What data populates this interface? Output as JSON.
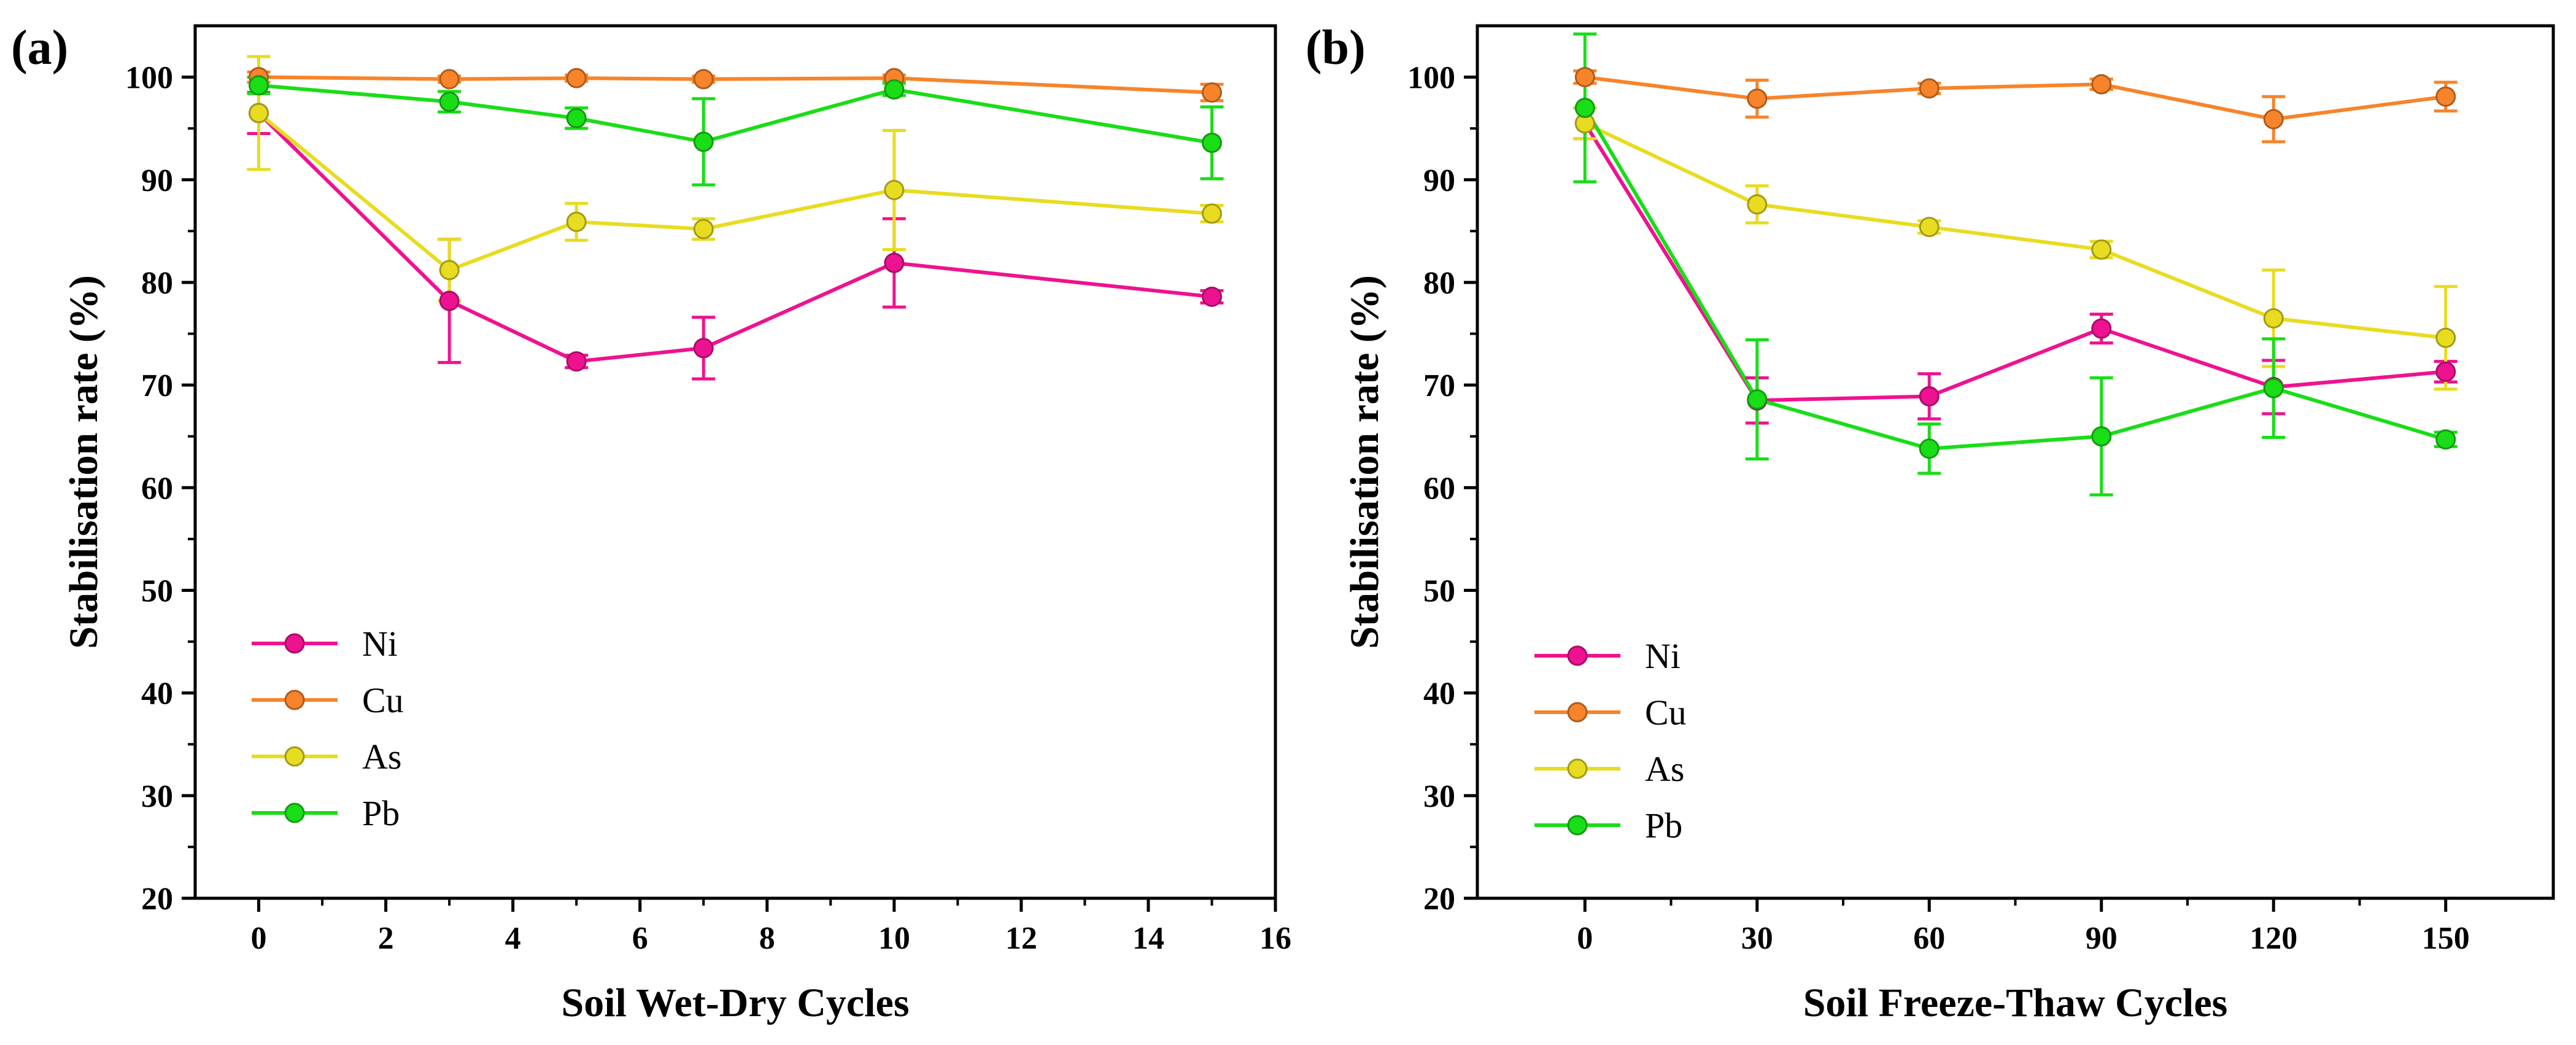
{
  "chart_data": [
    {
      "type": "line",
      "panel_label": "(a)",
      "xlabel": "Soil Wet-Dry Cycles",
      "ylabel": "Stabilisation rate  (%)",
      "xlim": [
        -1,
        16
      ],
      "ylim": [
        20,
        105
      ],
      "xticks": [
        0,
        2,
        4,
        6,
        8,
        10,
        12,
        14,
        16
      ],
      "yticks": [
        20,
        30,
        40,
        50,
        60,
        70,
        80,
        90,
        100
      ],
      "x": [
        0,
        3,
        5,
        7,
        10,
        15
      ],
      "legend_position": "lower-left",
      "series": [
        {
          "name": "Ni",
          "color": "#ee1290",
          "values": [
            96.5,
            78.2,
            72.3,
            73.6,
            81.9,
            78.6
          ],
          "errors": [
            2.0,
            6.0,
            0.6,
            3.0,
            4.3,
            0.6
          ]
        },
        {
          "name": "Cu",
          "color": "#f7842a",
          "values": [
            100.0,
            99.8,
            99.9,
            99.8,
            99.9,
            98.5
          ],
          "errors": [
            0.5,
            0.3,
            0.3,
            0.3,
            0.3,
            0.8
          ]
        },
        {
          "name": "As",
          "color": "#e8dc20",
          "values": [
            96.5,
            81.2,
            85.9,
            85.2,
            89.0,
            86.7
          ],
          "errors": [
            5.5,
            3.0,
            1.8,
            1.0,
            5.8,
            0.8
          ]
        },
        {
          "name": "Pb",
          "color": "#19dd17",
          "values": [
            99.2,
            97.6,
            96.0,
            93.7,
            98.8,
            93.6
          ],
          "errors": [
            0.8,
            1.0,
            1.0,
            4.2,
            0.6,
            3.5
          ]
        }
      ]
    },
    {
      "type": "line",
      "panel_label": "(b)",
      "xlabel": "Soil Freeze-Thaw Cycles",
      "ylabel": "Stabilisation rate  (%)",
      "xlim": [
        -18.75,
        168.75
      ],
      "ylim": [
        20,
        105
      ],
      "xticks": [
        0,
        30,
        60,
        90,
        120,
        150
      ],
      "yticks": [
        20,
        30,
        40,
        50,
        60,
        70,
        80,
        90,
        100
      ],
      "x": [
        0,
        30,
        60,
        90,
        120,
        150
      ],
      "legend_position": "lower-left",
      "series": [
        {
          "name": "Ni",
          "color": "#ee1290",
          "values": [
            95.5,
            68.5,
            68.9,
            75.5,
            69.8,
            71.3
          ],
          "errors": [
            1.5,
            2.2,
            2.2,
            1.4,
            2.6,
            1.0
          ]
        },
        {
          "name": "Cu",
          "color": "#f7842a",
          "values": [
            100.0,
            97.9,
            98.9,
            99.3,
            95.9,
            98.1
          ],
          "errors": [
            0.6,
            1.8,
            0.5,
            0.5,
            2.2,
            1.4
          ]
        },
        {
          "name": "As",
          "color": "#e8dc20",
          "values": [
            95.5,
            87.6,
            85.4,
            83.2,
            76.5,
            74.6
          ],
          "errors": [
            1.5,
            1.8,
            0.6,
            0.8,
            4.7,
            5.0
          ]
        },
        {
          "name": "Pb",
          "color": "#19dd17",
          "values": [
            97.0,
            68.6,
            63.8,
            65.0,
            69.7,
            64.7
          ],
          "errors": [
            7.2,
            5.8,
            2.4,
            5.7,
            4.8,
            0.7
          ]
        }
      ]
    }
  ]
}
